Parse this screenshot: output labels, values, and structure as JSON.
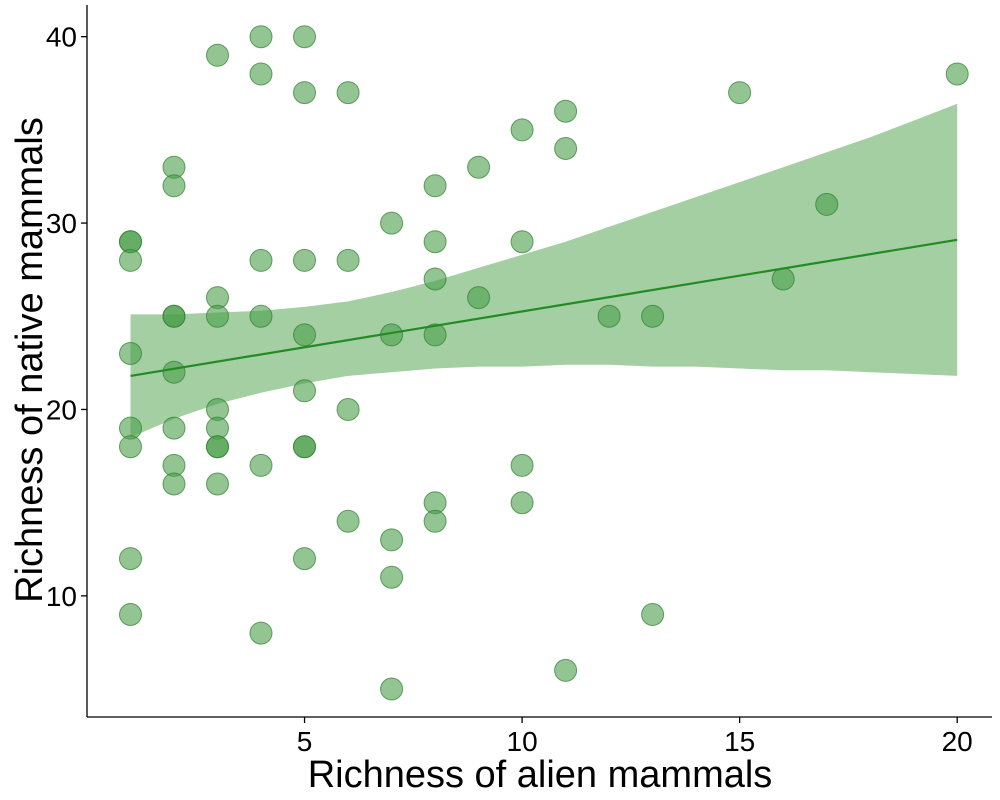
{
  "chart_data": {
    "type": "scatter",
    "xlabel": "Richness of alien mammals",
    "ylabel": "Richness of native mammals",
    "xlim": [
      0,
      20.8
    ],
    "ylim": [
      3.5,
      41.7
    ],
    "x_ticks": [
      5,
      10,
      15,
      20
    ],
    "y_ticks": [
      10,
      20,
      30,
      40
    ],
    "grid": false,
    "colors": {
      "point_fill": "#4a9e4a",
      "point_stroke": "#2e7d2e",
      "ribbon_fill": "#a3cfa3",
      "line": "#228b22",
      "axis": "#000000"
    },
    "points": [
      {
        "x": 1,
        "y": 29
      },
      {
        "x": 1,
        "y": 29
      },
      {
        "x": 1,
        "y": 28
      },
      {
        "x": 1,
        "y": 23
      },
      {
        "x": 1,
        "y": 19
      },
      {
        "x": 1,
        "y": 18
      },
      {
        "x": 1,
        "y": 12
      },
      {
        "x": 1,
        "y": 9
      },
      {
        "x": 2,
        "y": 33
      },
      {
        "x": 2,
        "y": 32
      },
      {
        "x": 2,
        "y": 25
      },
      {
        "x": 2,
        "y": 25
      },
      {
        "x": 2,
        "y": 22
      },
      {
        "x": 2,
        "y": 19
      },
      {
        "x": 2,
        "y": 17
      },
      {
        "x": 2,
        "y": 16
      },
      {
        "x": 3,
        "y": 39
      },
      {
        "x": 3,
        "y": 26
      },
      {
        "x": 3,
        "y": 25
      },
      {
        "x": 3,
        "y": 20
      },
      {
        "x": 3,
        "y": 19
      },
      {
        "x": 3,
        "y": 18
      },
      {
        "x": 3,
        "y": 18
      },
      {
        "x": 3,
        "y": 16
      },
      {
        "x": 4,
        "y": 40
      },
      {
        "x": 4,
        "y": 38
      },
      {
        "x": 4,
        "y": 28
      },
      {
        "x": 4,
        "y": 25
      },
      {
        "x": 4,
        "y": 17
      },
      {
        "x": 4,
        "y": 8
      },
      {
        "x": 5,
        "y": 40
      },
      {
        "x": 5,
        "y": 37
      },
      {
        "x": 5,
        "y": 28
      },
      {
        "x": 5,
        "y": 24
      },
      {
        "x": 5,
        "y": 21
      },
      {
        "x": 5,
        "y": 18
      },
      {
        "x": 5,
        "y": 18
      },
      {
        "x": 5,
        "y": 12
      },
      {
        "x": 6,
        "y": 37
      },
      {
        "x": 6,
        "y": 28
      },
      {
        "x": 6,
        "y": 20
      },
      {
        "x": 6,
        "y": 14
      },
      {
        "x": 7,
        "y": 30
      },
      {
        "x": 7,
        "y": 24
      },
      {
        "x": 7,
        "y": 13
      },
      {
        "x": 7,
        "y": 11
      },
      {
        "x": 7,
        "y": 5
      },
      {
        "x": 8,
        "y": 32
      },
      {
        "x": 8,
        "y": 29
      },
      {
        "x": 8,
        "y": 27
      },
      {
        "x": 8,
        "y": 24
      },
      {
        "x": 8,
        "y": 15
      },
      {
        "x": 8,
        "y": 14
      },
      {
        "x": 9,
        "y": 33
      },
      {
        "x": 9,
        "y": 26
      },
      {
        "x": 10,
        "y": 35
      },
      {
        "x": 10,
        "y": 29
      },
      {
        "x": 10,
        "y": 17
      },
      {
        "x": 10,
        "y": 15
      },
      {
        "x": 11,
        "y": 36
      },
      {
        "x": 11,
        "y": 34
      },
      {
        "x": 11,
        "y": 6
      },
      {
        "x": 12,
        "y": 25
      },
      {
        "x": 13,
        "y": 25
      },
      {
        "x": 13,
        "y": 9
      },
      {
        "x": 15,
        "y": 37
      },
      {
        "x": 16,
        "y": 27
      },
      {
        "x": 17,
        "y": 31
      },
      {
        "x": 20,
        "y": 38
      }
    ],
    "fit_line": [
      {
        "x": 1,
        "y": 21.8
      },
      {
        "x": 20,
        "y": 29.1
      }
    ],
    "confidence_band": [
      {
        "x": 1,
        "lower": 18.5,
        "upper": 25.1
      },
      {
        "x": 2,
        "lower": 19.5,
        "upper": 25.1
      },
      {
        "x": 3,
        "lower": 20.3,
        "upper": 25.2
      },
      {
        "x": 4,
        "lower": 20.9,
        "upper": 25.3
      },
      {
        "x": 5,
        "lower": 21.4,
        "upper": 25.5
      },
      {
        "x": 6,
        "lower": 21.8,
        "upper": 25.8
      },
      {
        "x": 7,
        "lower": 22.0,
        "upper": 26.3
      },
      {
        "x": 8,
        "lower": 22.2,
        "upper": 26.9
      },
      {
        "x": 9,
        "lower": 22.3,
        "upper": 27.6
      },
      {
        "x": 10,
        "lower": 22.3,
        "upper": 28.3
      },
      {
        "x": 11,
        "lower": 22.4,
        "upper": 29.0
      },
      {
        "x": 12,
        "lower": 22.4,
        "upper": 29.8
      },
      {
        "x": 13,
        "lower": 22.3,
        "upper": 30.6
      },
      {
        "x": 14,
        "lower": 22.3,
        "upper": 31.4
      },
      {
        "x": 15,
        "lower": 22.2,
        "upper": 32.2
      },
      {
        "x": 16,
        "lower": 22.1,
        "upper": 33.0
      },
      {
        "x": 17,
        "lower": 22.1,
        "upper": 33.8
      },
      {
        "x": 18,
        "lower": 22.0,
        "upper": 34.6
      },
      {
        "x": 19,
        "lower": 21.9,
        "upper": 35.5
      },
      {
        "x": 20,
        "lower": 21.8,
        "upper": 36.4
      }
    ]
  }
}
